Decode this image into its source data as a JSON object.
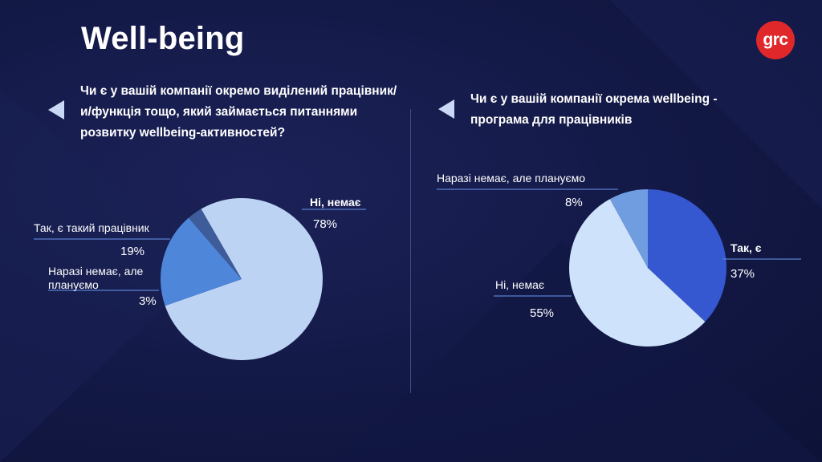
{
  "title": "Well-being",
  "logo": "grc",
  "chart_data": [
    {
      "type": "pie",
      "title": "Чи є у вашій компанії окремо виділений працівник/и/функція тощо, який займається питаннями розвитку wellbeing-активностей?",
      "slices": [
        {
          "name": "Ні, немає",
          "value": 78,
          "label": "78%",
          "color": "#bcd3f4"
        },
        {
          "name": "Так, є такий працівник",
          "value": 19,
          "label": "19%",
          "color": "#4e86da"
        },
        {
          "name": "Наразі немає, але плануємо",
          "value": 3,
          "label": "3%",
          "color": "#3e5c9a"
        }
      ]
    },
    {
      "type": "pie",
      "title": "Чи є у вашій компанії окрема wellbeing - програма для працівників",
      "slices": [
        {
          "name": "Так, є",
          "value": 37,
          "label": "37%",
          "color": "#3557d0"
        },
        {
          "name": "Ні, немає",
          "value": 55,
          "label": "55%",
          "color": "#cfe2fb"
        },
        {
          "name": "Наразі немає, але плануємо",
          "value": 8,
          "label": "8%",
          "color": "#6f9de0"
        }
      ]
    }
  ],
  "charts_style": {
    "bg_accent": "#1d2560",
    "line_color": "#5a7fd0"
  }
}
